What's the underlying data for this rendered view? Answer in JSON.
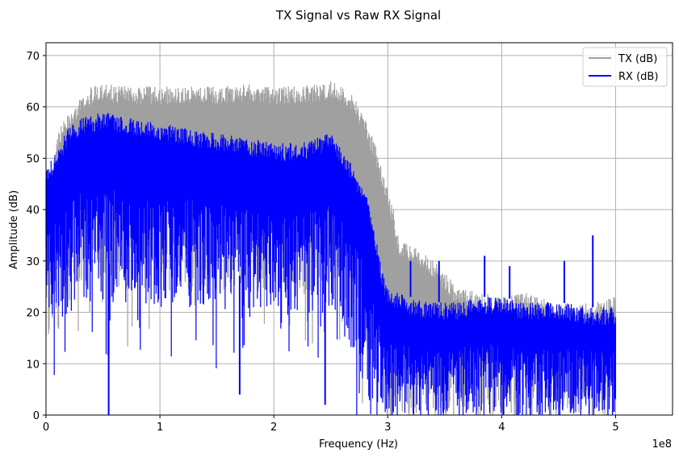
{
  "chart_data": {
    "type": "line",
    "title": "TX Signal vs Raw RX Signal",
    "xlabel": "Frequency (Hz)",
    "ylabel": "Amplitude (dB)",
    "x_offset_label": "1e8",
    "xlim": [
      0,
      5.5
    ],
    "ylim": [
      0,
      72.5
    ],
    "x_ticks": [
      0,
      1,
      2,
      3,
      4,
      5
    ],
    "y_ticks": [
      0,
      10,
      20,
      30,
      40,
      50,
      60,
      70
    ],
    "grid": true,
    "legend_position": "top-right",
    "series": [
      {
        "name": "TX (dB)",
        "color": "#a0a0a0",
        "x": [
          0,
          0.1,
          0.2,
          0.3,
          0.4,
          0.5,
          0.75,
          1.0,
          1.25,
          1.5,
          1.75,
          2.0,
          2.25,
          2.5,
          2.6,
          2.7,
          2.8,
          2.85,
          2.9,
          2.95,
          3.0,
          3.05,
          3.1,
          3.2,
          3.3,
          3.4,
          3.5,
          3.6,
          3.8,
          4.0,
          4.2,
          4.5,
          4.8,
          5.0
        ],
        "envelope_upper": [
          40,
          55,
          59,
          62,
          64,
          64.5,
          64,
          64,
          64,
          64,
          64.5,
          64,
          64,
          65,
          64,
          62,
          58,
          55,
          52,
          48,
          44,
          40,
          34,
          33,
          32,
          30,
          28,
          25,
          24,
          23,
          24,
          22,
          22,
          23
        ],
        "envelope_lower": [
          10,
          20,
          22,
          24,
          25,
          25,
          24,
          24,
          24,
          24,
          24,
          24,
          24,
          24,
          22,
          18,
          12,
          8,
          5,
          2,
          0,
          0,
          0,
          0,
          0,
          0,
          0,
          0,
          0,
          0,
          0,
          0,
          0,
          0
        ]
      },
      {
        "name": "RX (dB)",
        "color": "#0000ff",
        "x": [
          0,
          0.1,
          0.2,
          0.3,
          0.4,
          0.5,
          0.75,
          1.0,
          1.25,
          1.5,
          1.75,
          2.0,
          2.25,
          2.5,
          2.6,
          2.7,
          2.8,
          2.85,
          2.9,
          2.95,
          3.0,
          3.1,
          3.2,
          3.4,
          3.6,
          3.8,
          4.0,
          4.2,
          4.5,
          4.8,
          5.0
        ],
        "envelope_upper": [
          48,
          52,
          56,
          58,
          58.5,
          59,
          58,
          57,
          56,
          55,
          54,
          53,
          53,
          55,
          52,
          48,
          44,
          40,
          34,
          28,
          25,
          24,
          23,
          22,
          22,
          23,
          23,
          22,
          22,
          21,
          21
        ],
        "envelope_lower": [
          15,
          18,
          20,
          21,
          22,
          22,
          21,
          21,
          21,
          20,
          20,
          20,
          20,
          19,
          16,
          12,
          6,
          2,
          0,
          0,
          0,
          0,
          0,
          0,
          0,
          0,
          0,
          0,
          0,
          0,
          0
        ],
        "spikes": [
          {
            "x": 0.55,
            "y": 0
          },
          {
            "x": 1.7,
            "y": 4
          },
          {
            "x": 2.45,
            "y": 2
          },
          {
            "x": 3.2,
            "y": 30
          },
          {
            "x": 3.45,
            "y": 30
          },
          {
            "x": 3.85,
            "y": 31
          },
          {
            "x": 4.07,
            "y": 29
          },
          {
            "x": 4.55,
            "y": 30
          },
          {
            "x": 4.8,
            "y": 35
          }
        ]
      }
    ]
  }
}
